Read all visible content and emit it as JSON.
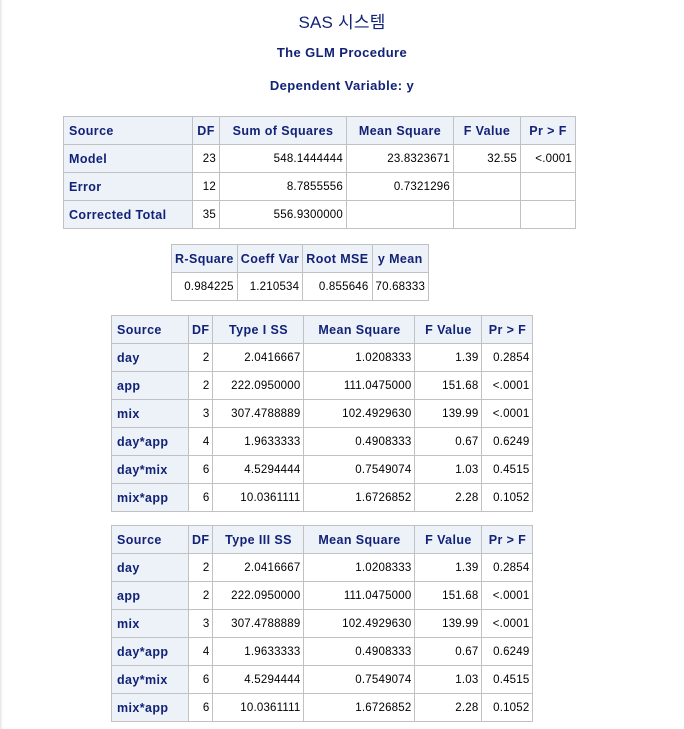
{
  "title": "SAS 시스템",
  "procedure": "The GLM Procedure",
  "dependent_variable": "Dependent Variable: y",
  "anova": {
    "headers": [
      "Source",
      "DF",
      "Sum of Squares",
      "Mean Square",
      "F Value",
      "Pr > F"
    ],
    "rows": [
      {
        "source": "Model",
        "df": "23",
        "ss": "548.1444444",
        "ms": "23.8323671",
        "f": "32.55",
        "p": "<.0001"
      },
      {
        "source": "Error",
        "df": "12",
        "ss": "8.7855556",
        "ms": "0.7321296",
        "f": "",
        "p": ""
      },
      {
        "source": "Corrected Total",
        "df": "35",
        "ss": "556.9300000",
        "ms": "",
        "f": "",
        "p": ""
      }
    ]
  },
  "fit_statistics": {
    "headers": [
      "R-Square",
      "Coeff Var",
      "Root MSE",
      "y Mean"
    ],
    "values": [
      "0.984225",
      "1.210534",
      "0.855646",
      "70.68333"
    ]
  },
  "type1": {
    "headers": [
      "Source",
      "DF",
      "Type I SS",
      "Mean Square",
      "F Value",
      "Pr > F"
    ],
    "rows": [
      {
        "source": "day",
        "df": "2",
        "ss": "2.0416667",
        "ms": "1.0208333",
        "f": "1.39",
        "p": "0.2854"
      },
      {
        "source": "app",
        "df": "2",
        "ss": "222.0950000",
        "ms": "111.0475000",
        "f": "151.68",
        "p": "<.0001"
      },
      {
        "source": "mix",
        "df": "3",
        "ss": "307.4788889",
        "ms": "102.4929630",
        "f": "139.99",
        "p": "<.0001"
      },
      {
        "source": "day*app",
        "df": "4",
        "ss": "1.9633333",
        "ms": "0.4908333",
        "f": "0.67",
        "p": "0.6249"
      },
      {
        "source": "day*mix",
        "df": "6",
        "ss": "4.5294444",
        "ms": "0.7549074",
        "f": "1.03",
        "p": "0.4515"
      },
      {
        "source": "mix*app",
        "df": "6",
        "ss": "10.0361111",
        "ms": "1.6726852",
        "f": "2.28",
        "p": "0.1052"
      }
    ]
  },
  "type3": {
    "headers": [
      "Source",
      "DF",
      "Type III SS",
      "Mean Square",
      "F Value",
      "Pr > F"
    ],
    "rows": [
      {
        "source": "day",
        "df": "2",
        "ss": "2.0416667",
        "ms": "1.0208333",
        "f": "1.39",
        "p": "0.2854"
      },
      {
        "source": "app",
        "df": "2",
        "ss": "222.0950000",
        "ms": "111.0475000",
        "f": "151.68",
        "p": "<.0001"
      },
      {
        "source": "mix",
        "df": "3",
        "ss": "307.4788889",
        "ms": "102.4929630",
        "f": "139.99",
        "p": "<.0001"
      },
      {
        "source": "day*app",
        "df": "4",
        "ss": "1.9633333",
        "ms": "0.4908333",
        "f": "0.67",
        "p": "0.6249"
      },
      {
        "source": "day*mix",
        "df": "6",
        "ss": "4.5294444",
        "ms": "0.7549074",
        "f": "1.03",
        "p": "0.4515"
      },
      {
        "source": "mix*app",
        "df": "6",
        "ss": "10.0361111",
        "ms": "1.6726852",
        "f": "2.28",
        "p": "0.1052"
      }
    ]
  }
}
